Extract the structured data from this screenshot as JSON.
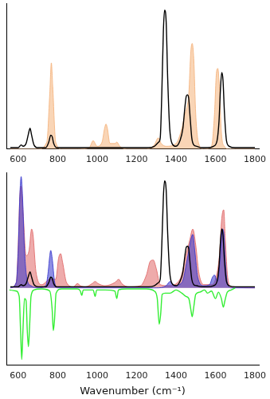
{
  "chart_data": [
    {
      "type": "line",
      "xlim": [
        540,
        1820
      ],
      "xticks": [
        600,
        800,
        1000,
        1200,
        1400,
        1600,
        1800
      ],
      "ylim": [
        0,
        1.05
      ],
      "tick_labels": "x",
      "grid": false,
      "series": [
        {
          "type": "area",
          "color": "#f4b27a",
          "x": [
            560,
            700,
            745,
            760,
            768,
            775,
            790,
            820,
            900,
            960,
            980,
            1000,
            1025,
            1038,
            1045,
            1052,
            1065,
            1090,
            1100,
            1115,
            1150,
            1250,
            1290,
            1310,
            1325,
            1350,
            1400,
            1430,
            1445,
            1455,
            1465,
            1475,
            1482,
            1490,
            1500,
            1515,
            1540,
            1580,
            1595,
            1605,
            1612,
            1620,
            1630,
            1645,
            1670,
            1700,
            1800
          ],
          "values": [
            0.0,
            0.0,
            0.05,
            0.4,
            0.62,
            0.45,
            0.05,
            0.0,
            0.0,
            0.01,
            0.06,
            0.02,
            0.05,
            0.15,
            0.18,
            0.15,
            0.04,
            0.04,
            0.05,
            0.02,
            0.0,
            0.0,
            0.03,
            0.08,
            0.04,
            0.02,
            0.04,
            0.15,
            0.25,
            0.3,
            0.4,
            0.7,
            0.76,
            0.65,
            0.25,
            0.04,
            0.0,
            0.02,
            0.25,
            0.55,
            0.58,
            0.45,
            0.12,
            0.02,
            0.0,
            0.0,
            0.0
          ]
        },
        {
          "type": "line",
          "color": "#000000",
          "x": [
            560,
            600,
            615,
            625,
            640,
            652,
            660,
            668,
            680,
            700,
            740,
            755,
            765,
            772,
            780,
            795,
            830,
            900,
            1000,
            1100,
            1200,
            1260,
            1290,
            1305,
            1312,
            1320,
            1328,
            1336,
            1342,
            1350,
            1358,
            1368,
            1380,
            1400,
            1420,
            1435,
            1445,
            1452,
            1458,
            1464,
            1472,
            1480,
            1490,
            1505,
            1530,
            1560,
            1590,
            1608,
            1618,
            1626,
            1632,
            1638,
            1646,
            1656,
            1670,
            1700,
            1750,
            1800
          ],
          "values": [
            0.01,
            0.01,
            0.03,
            0.02,
            0.04,
            0.11,
            0.15,
            0.1,
            0.03,
            0.01,
            0.01,
            0.05,
            0.1,
            0.09,
            0.04,
            0.01,
            0.01,
            0.01,
            0.01,
            0.01,
            0.01,
            0.01,
            0.02,
            0.04,
            0.05,
            0.08,
            0.4,
            0.85,
            1.0,
            0.92,
            0.5,
            0.15,
            0.04,
            0.02,
            0.06,
            0.15,
            0.3,
            0.38,
            0.39,
            0.37,
            0.22,
            0.08,
            0.03,
            0.02,
            0.01,
            0.01,
            0.02,
            0.06,
            0.2,
            0.45,
            0.55,
            0.5,
            0.25,
            0.06,
            0.02,
            0.01,
            0.01,
            0.01
          ]
        }
      ]
    },
    {
      "type": "line",
      "x_label": "Wavenumber (cm⁻¹)",
      "xlim": [
        540,
        1820
      ],
      "xticks": [
        600,
        800,
        1000,
        1200,
        1400,
        1600,
        1800
      ],
      "ylim": [
        -0.72,
        1.08
      ],
      "tick_labels": "x",
      "grid": false,
      "series": [
        {
          "type": "area",
          "color": "#e06666",
          "x": [
            560,
            590,
            600,
            608,
            615,
            625,
            640,
            655,
            668,
            675,
            690,
            720,
            760,
            790,
            805,
            815,
            825,
            845,
            880,
            900,
            915,
            940,
            975,
            990,
            1005,
            1040,
            1090,
            1110,
            1125,
            1160,
            1220,
            1250,
            1270,
            1285,
            1300,
            1320,
            1360,
            1420,
            1450,
            1470,
            1485,
            1500,
            1515,
            1540,
            1580,
            1600,
            1620,
            1632,
            1642,
            1650,
            1662,
            1680,
            1800
          ],
          "values": [
            0.0,
            0.05,
            0.4,
            0.85,
            0.95,
            0.7,
            0.3,
            0.35,
            0.55,
            0.5,
            0.15,
            0.03,
            0.08,
            0.08,
            0.28,
            0.32,
            0.24,
            0.05,
            0.01,
            0.04,
            0.02,
            0.01,
            0.04,
            0.06,
            0.04,
            0.02,
            0.05,
            0.08,
            0.04,
            0.01,
            0.02,
            0.12,
            0.25,
            0.26,
            0.18,
            0.03,
            0.02,
            0.08,
            0.3,
            0.45,
            0.55,
            0.4,
            0.15,
            0.03,
            0.03,
            0.08,
            0.3,
            0.65,
            0.73,
            0.45,
            0.1,
            0.01,
            0.0
          ]
        },
        {
          "type": "area",
          "color": "#3333cc",
          "x": [
            560,
            590,
            600,
            608,
            615,
            622,
            632,
            645,
            665,
            700,
            740,
            752,
            760,
            765,
            772,
            785,
            800,
            900,
            1000,
            1300,
            1350,
            1370,
            1390,
            1430,
            1460,
            1475,
            1485,
            1495,
            1510,
            1540,
            1570,
            1585,
            1595,
            1610,
            1625,
            1635,
            1642,
            1650,
            1660,
            1680,
            1800
          ],
          "values": [
            0.0,
            0.05,
            0.35,
            0.85,
            1.04,
            0.85,
            0.35,
            0.08,
            0.02,
            0.0,
            0.02,
            0.15,
            0.3,
            0.35,
            0.28,
            0.05,
            0.0,
            0.0,
            0.0,
            0.0,
            0.02,
            0.06,
            0.02,
            0.05,
            0.3,
            0.45,
            0.5,
            0.35,
            0.1,
            0.02,
            0.03,
            0.1,
            0.12,
            0.06,
            0.3,
            0.55,
            0.52,
            0.25,
            0.05,
            0.0,
            0.0
          ]
        },
        {
          "type": "line",
          "color": "#33ee33",
          "x": [
            555,
            590,
            605,
            612,
            618,
            624,
            632,
            640,
            646,
            652,
            658,
            665,
            680,
            720,
            760,
            772,
            778,
            784,
            792,
            820,
            900,
            915,
            922,
            930,
            980,
            990,
            998,
            1040,
            1090,
            1100,
            1108,
            1150,
            1250,
            1290,
            1305,
            1315,
            1322,
            1330,
            1345,
            1370,
            1400,
            1430,
            1450,
            1465,
            1475,
            1482,
            1490,
            1500,
            1520,
            1545,
            1560,
            1580,
            1600,
            1615,
            1630,
            1640,
            1648,
            1660,
            1680,
            1700
          ],
          "values": [
            -0.02,
            -0.03,
            -0.08,
            -0.4,
            -0.67,
            -0.4,
            -0.1,
            -0.12,
            -0.4,
            -0.55,
            -0.35,
            -0.08,
            -0.02,
            -0.01,
            -0.03,
            -0.2,
            -0.4,
            -0.3,
            -0.05,
            -0.01,
            -0.01,
            -0.03,
            -0.07,
            -0.02,
            -0.02,
            -0.08,
            -0.02,
            -0.02,
            -0.03,
            -0.1,
            -0.02,
            -0.01,
            -0.01,
            -0.03,
            -0.1,
            -0.34,
            -0.25,
            -0.06,
            -0.05,
            -0.05,
            -0.02,
            -0.05,
            -0.08,
            -0.1,
            -0.2,
            -0.27,
            -0.18,
            -0.06,
            -0.04,
            -0.02,
            -0.05,
            -0.03,
            -0.1,
            -0.04,
            -0.1,
            -0.18,
            -0.12,
            -0.04,
            -0.02,
            0.0
          ]
        },
        {
          "type": "line",
          "color": "#000000",
          "x": [
            560,
            600,
            615,
            625,
            640,
            652,
            660,
            668,
            680,
            700,
            740,
            755,
            765,
            772,
            780,
            795,
            830,
            900,
            1000,
            1100,
            1200,
            1260,
            1290,
            1305,
            1312,
            1320,
            1328,
            1336,
            1342,
            1350,
            1358,
            1368,
            1380,
            1400,
            1420,
            1435,
            1445,
            1452,
            1458,
            1464,
            1472,
            1480,
            1490,
            1505,
            1530,
            1560,
            1590,
            1608,
            1618,
            1626,
            1632,
            1638,
            1646,
            1656,
            1670,
            1700,
            1750,
            1800
          ],
          "values": [
            0.01,
            0.01,
            0.03,
            0.02,
            0.04,
            0.11,
            0.15,
            0.1,
            0.03,
            0.01,
            0.01,
            0.05,
            0.1,
            0.09,
            0.04,
            0.01,
            0.01,
            0.01,
            0.01,
            0.01,
            0.01,
            0.01,
            0.02,
            0.04,
            0.05,
            0.08,
            0.4,
            0.85,
            1.0,
            0.92,
            0.5,
            0.15,
            0.04,
            0.02,
            0.06,
            0.15,
            0.3,
            0.38,
            0.39,
            0.37,
            0.22,
            0.08,
            0.03,
            0.02,
            0.01,
            0.01,
            0.02,
            0.06,
            0.2,
            0.45,
            0.55,
            0.5,
            0.25,
            0.06,
            0.02,
            0.01,
            0.01,
            0.01
          ]
        }
      ]
    }
  ]
}
